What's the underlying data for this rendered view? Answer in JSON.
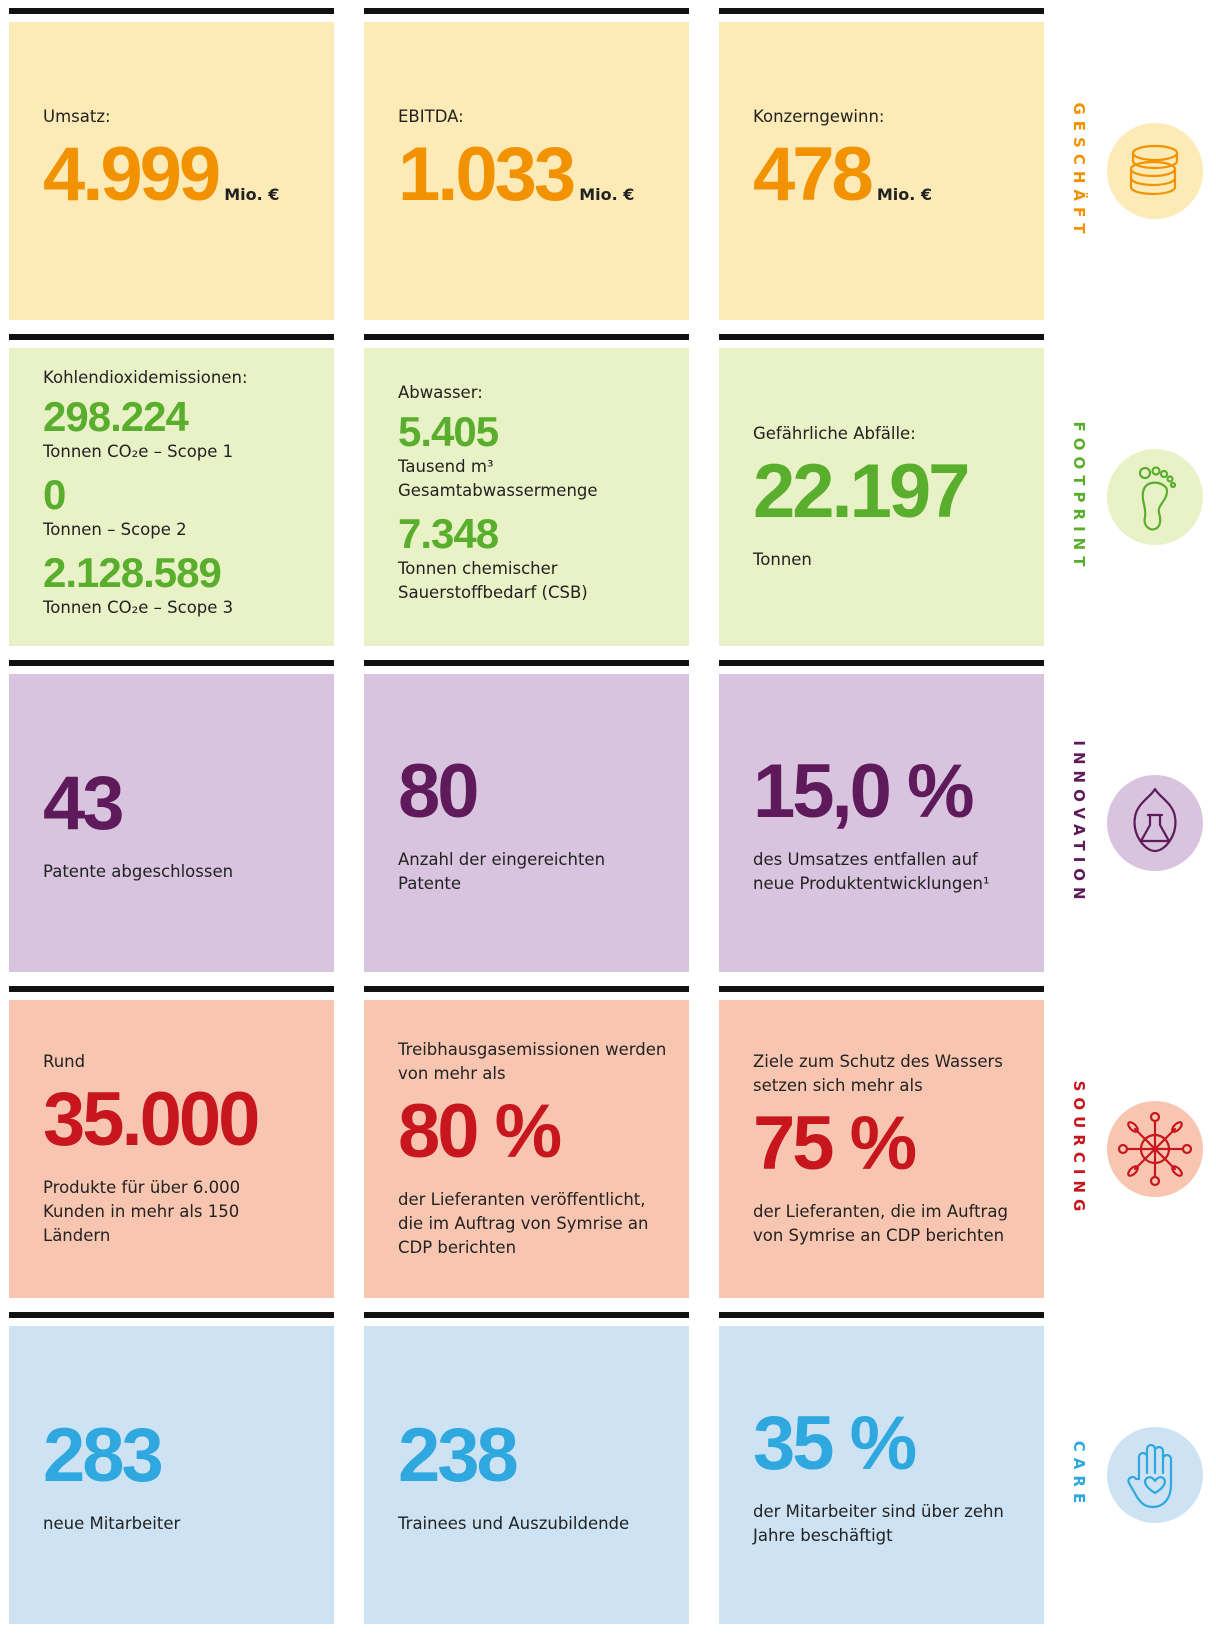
{
  "rows": [
    {
      "section": "GESCHÄFT",
      "color": "#f39200",
      "background": "#fcebb6",
      "cells": [
        {
          "label": "Umsatz:",
          "figures": [
            {
              "value": "4.999",
              "unit": "Mio. €"
            }
          ]
        },
        {
          "label": "EBITDA:",
          "figures": [
            {
              "value": "1.033",
              "unit": "Mio. €"
            }
          ]
        },
        {
          "label": "Konzerngewinn:",
          "figures": [
            {
              "value": "478",
              "unit": "Mio. €"
            }
          ]
        }
      ]
    },
    {
      "section": "FOOTPRINT",
      "color": "#5aae2e",
      "background": "#e9f1c6",
      "cells": [
        {
          "label": "Kohlendioxidemissionen:",
          "figures": [
            {
              "value": "298.224",
              "caption": "Tonnen CO₂e – Scope 1"
            },
            {
              "value": "0",
              "caption": "Tonnen – Scope 2"
            },
            {
              "value": "2.128.589",
              "caption": "Tonnen CO₂e – Scope 3"
            }
          ]
        },
        {
          "label": "Abwasser:",
          "figures": [
            {
              "value": "5.405",
              "caption": "Tausend m³ Gesamtabwassermenge"
            },
            {
              "value": "7.348",
              "caption": "Tonnen chemischer Sauerstoffbedarf (CSB)"
            }
          ]
        },
        {
          "label": "Gefährliche Abfälle:",
          "figures": [
            {
              "value": "22.197",
              "caption": "Tonnen"
            }
          ]
        }
      ]
    },
    {
      "section": "INNOVATION",
      "color": "#5e1a5a",
      "background": "#d8c4de",
      "cells": [
        {
          "figures": [
            {
              "value": "43",
              "caption": "Patente abgeschlossen"
            }
          ]
        },
        {
          "figures": [
            {
              "value": "80",
              "caption": "Anzahl der eingereichten Patente"
            }
          ]
        },
        {
          "figures": [
            {
              "value": "15,0 %",
              "caption": "des Umsatzes entfallen auf neue Produktentwicklungen¹"
            }
          ]
        }
      ]
    },
    {
      "section": "SOURCING",
      "color": "#c8161e",
      "background": "#f8c6b0",
      "cells": [
        {
          "label": "Rund",
          "figures": [
            {
              "value": "35.000",
              "caption": "Produkte für über 6.000 Kunden in mehr als 150 Ländern"
            }
          ]
        },
        {
          "label": "Treibhausgasemissionen werden von mehr als",
          "figures": [
            {
              "value": "80 %",
              "caption": "der Lieferanten veröffentlicht, die im Auftrag von Symrise an CDP berichten"
            }
          ]
        },
        {
          "label": "Ziele zum Schutz des Wassers setzen sich mehr als",
          "figures": [
            {
              "value": "75 %",
              "caption": "der Lieferanten, die im Auftrag von Symrise an CDP berichten"
            }
          ]
        }
      ]
    },
    {
      "section": "CARE",
      "color": "#2ea8de",
      "background": "#cde3f4",
      "cells": [
        {
          "figures": [
            {
              "value": "283",
              "caption": "neue Mitarbeiter"
            }
          ]
        },
        {
          "figures": [
            {
              "value": "238",
              "caption": "Trainees und Auszubildende"
            }
          ]
        },
        {
          "figures": [
            {
              "value": "35 %",
              "caption": "der Mitarbeiter sind über zehn Jahre beschäftigt"
            }
          ]
        }
      ]
    }
  ]
}
